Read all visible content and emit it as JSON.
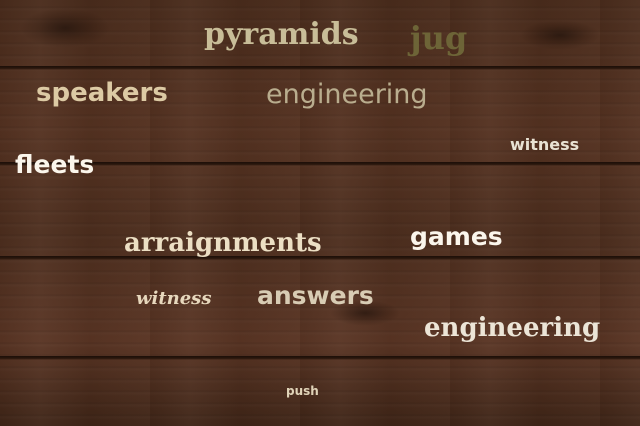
{
  "words": [
    {
      "text": "pyramids",
      "color": "#c8bd98"
    },
    {
      "text": "jug",
      "color": "#6d6437"
    },
    {
      "text": "speakers",
      "color": "#dccaa4"
    },
    {
      "text": "engineering",
      "color": "#b9ad8e"
    },
    {
      "text": "witness",
      "color": "#e9e2d3"
    },
    {
      "text": "fleets",
      "color": "#fbf6ec"
    },
    {
      "text": "arraignments",
      "color": "#ecdfc4"
    },
    {
      "text": "games",
      "color": "#fbf6ec"
    },
    {
      "text": "witness",
      "color": "#e7d8bd"
    },
    {
      "text": "answers",
      "color": "#d8ccb4"
    },
    {
      "text": "engineering",
      "color": "#ece5d7"
    },
    {
      "text": "push",
      "color": "#e0d3b8"
    }
  ],
  "background": {
    "description": "dark-wood-planks",
    "base_color": "#4d2e1e"
  }
}
